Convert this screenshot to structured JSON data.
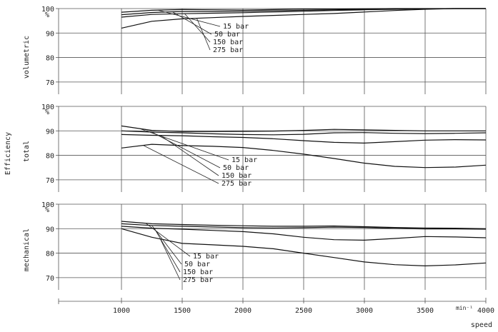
{
  "chart_data": {
    "type": "line",
    "title": "",
    "ylabel": "Efficiency",
    "xlabel": "speed",
    "x_unit": "min⁻¹",
    "x_ticks": [
      1000,
      1500,
      2000,
      2500,
      3000,
      3500,
      4000
    ],
    "xlim": [
      1000,
      4000
    ],
    "x": [
      1000,
      1250,
      1500,
      1750,
      2000,
      2250,
      2500,
      2750,
      3000,
      3250,
      3500,
      3750,
      4000
    ],
    "grid": true,
    "legend": "leader-lines",
    "panels": [
      {
        "key": "volumetric",
        "label": "volumetric",
        "unit": "%",
        "ylim": [
          65,
          100
        ],
        "y_ticks": [
          70,
          80,
          90,
          100
        ],
        "series": [
          {
            "name": "15 bar",
            "values": [
              98.5,
              99.3,
              99.6,
              99.5,
              99.4,
              99.6,
              99.8,
              99.8,
              99.9,
              100,
              100,
              100,
              100
            ]
          },
          {
            "name": "50 bar",
            "values": [
              97.5,
              98.4,
              98.8,
              98.8,
              98.9,
              99.1,
              99.3,
              99.5,
              99.7,
              99.8,
              99.9,
              100,
              100
            ]
          },
          {
            "name": "150 bar",
            "values": [
              96.5,
              97.6,
              97.9,
              98.1,
              98.3,
              98.6,
              98.9,
              99.2,
              99.5,
              99.7,
              99.9,
              100,
              100
            ]
          },
          {
            "name": "275 bar",
            "values": [
              92.0,
              94.8,
              95.8,
              96.3,
              96.8,
              97.2,
              97.6,
              98.0,
              98.6,
              99.2,
              99.7,
              100,
              100
            ]
          }
        ]
      },
      {
        "key": "total",
        "label": "total",
        "unit": "%",
        "ylim": [
          65,
          100
        ],
        "y_ticks": [
          70,
          80,
          90,
          100
        ],
        "series": [
          {
            "name": "15 bar",
            "values": [
              92.0,
              90.2,
              89.7,
              89.7,
              89.8,
              89.9,
              90.2,
              90.6,
              90.4,
              90.2,
              90.0,
              90.0,
              90.0
            ]
          },
          {
            "name": "50 bar",
            "values": [
              90.0,
              89.5,
              89.2,
              88.8,
              88.5,
              88.4,
              88.6,
              89.2,
              89.3,
              89.0,
              88.9,
              89.0,
              89.2
            ]
          },
          {
            "name": "150 bar",
            "values": [
              88.5,
              88.2,
              88.0,
              87.6,
              87.3,
              86.8,
              86.0,
              85.3,
              85.0,
              85.6,
              86.2,
              86.4,
              86.3
            ]
          },
          {
            "name": "275 bar",
            "values": [
              83.0,
              84.5,
              84.0,
              83.7,
              83.2,
              82.0,
              80.5,
              78.7,
              76.8,
              75.5,
              75.0,
              75.2,
              76.0
            ]
          }
        ]
      },
      {
        "key": "mechanical",
        "label": "mechanical",
        "unit": "%",
        "ylim": [
          65,
          100
        ],
        "y_ticks": [
          70,
          80,
          90,
          100
        ],
        "series": [
          {
            "name": "15 bar",
            "values": [
              93.0,
              92.0,
              91.7,
              91.4,
              91.2,
              91.0,
              91.0,
              91.1,
              90.8,
              90.5,
              90.3,
              90.2,
              90.0
            ]
          },
          {
            "name": "50 bar",
            "values": [
              92.0,
              91.3,
              91.0,
              90.7,
              90.4,
              90.3,
              90.4,
              90.6,
              90.5,
              90.1,
              89.9,
              89.9,
              89.8
            ]
          },
          {
            "name": "150 bar",
            "values": [
              91.0,
              90.2,
              89.8,
              89.3,
              88.8,
              87.9,
              86.5,
              85.5,
              85.3,
              86.0,
              86.8,
              86.6,
              86.3
            ]
          },
          {
            "name": "275 bar",
            "values": [
              90.0,
              86.5,
              84.0,
              83.4,
              82.8,
              81.8,
              80.0,
              78.2,
              76.4,
              75.3,
              74.8,
              75.2,
              76.0
            ]
          }
        ]
      }
    ],
    "series_labels": [
      "15 bar",
      "50 bar",
      "150 bar",
      "275 bar"
    ]
  }
}
